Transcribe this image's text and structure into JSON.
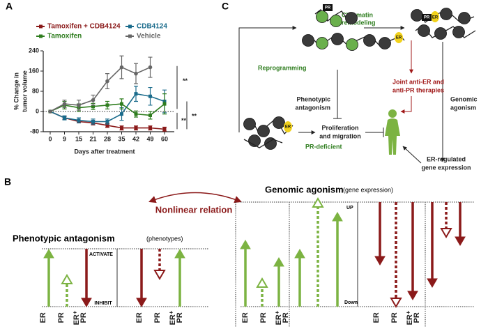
{
  "panel_labels": [
    "A",
    "B",
    "C"
  ],
  "chart_data": {
    "type": "line",
    "x_label": "Days after treatment",
    "y_label": [
      "% Change in",
      "tumor volume"
    ],
    "categories": [
      "0",
      "9",
      "15",
      "21",
      "28",
      "35",
      "42",
      "49",
      "60"
    ],
    "ylim": [
      -80,
      240
    ],
    "yticks": [
      -80,
      0,
      80,
      160,
      240
    ],
    "series": [
      {
        "name": "Tamoxifen + CDB4124",
        "color": "#8b1a1a",
        "values": [
          0,
          -25,
          -40,
          -45,
          -55,
          -65,
          -65,
          -65,
          -70
        ],
        "errors": [
          0,
          5,
          5,
          8,
          8,
          8,
          8,
          8,
          8
        ]
      },
      {
        "name": "CDB4124",
        "color": "#1b6c8c",
        "values": [
          0,
          -25,
          -35,
          -40,
          -40,
          -10,
          70,
          60,
          40
        ],
        "errors": [
          0,
          8,
          10,
          10,
          10,
          25,
          30,
          35,
          45
        ]
      },
      {
        "name": "Tamoxifen",
        "color": "#2e7d1e",
        "values": [
          0,
          25,
          15,
          20,
          25,
          30,
          -10,
          -15,
          30
        ],
        "errors": [
          0,
          15,
          15,
          12,
          15,
          20,
          12,
          15,
          40
        ]
      },
      {
        "name": "Vehicle",
        "color": "#666666",
        "values": [
          0,
          30,
          25,
          45,
          120,
          175,
          150,
          175,
          null
        ],
        "errors": [
          0,
          15,
          20,
          20,
          30,
          45,
          40,
          40,
          null
        ]
      }
    ],
    "annotations": [
      "**",
      "**",
      "**"
    ]
  },
  "diagram": {
    "chromatin_remodeling": [
      "Chromatin",
      "remodeling"
    ],
    "reprogramming": "Reprogramming",
    "phenotypic_antagonism": [
      "Phenotypic",
      "antagonism"
    ],
    "proliferation": [
      "Proliferation",
      "and migration"
    ],
    "pr_deficient": "PR-deficient",
    "joint_therapies": [
      "Joint anti-ER  and",
      "anti-PR therapies"
    ],
    "genomic_agonism": [
      "Genomic",
      "agonism"
    ],
    "er_gene_expression": [
      "ER-regulated",
      "gene expression"
    ],
    "tags": [
      "PR",
      "ER",
      "PR",
      "ER",
      "ER"
    ]
  },
  "schematic": {
    "genomic_title": "Genomic agonism",
    "genomic_note": "(gene expression)",
    "phenotypic_title": "Phenotypic antagonism",
    "phenotypic_note": "(phenotypes)",
    "relation": "Nonlinear relation",
    "activate": "ACTIVATE",
    "inhibit": "INHIBIT",
    "up": "UP",
    "down": "Down",
    "receptor_groups": [
      [
        "ER",
        "PR",
        "ER⁺",
        "PR"
      ],
      [
        "ER",
        "PR",
        "ER⁺",
        "PR"
      ],
      [
        "ER",
        "PR",
        "ER⁺",
        "PR"
      ],
      [
        "ER",
        "PR",
        "ER⁺",
        "PR"
      ]
    ]
  }
}
